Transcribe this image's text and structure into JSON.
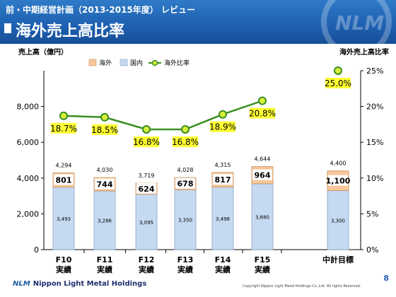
{
  "header": {
    "subtitle": "前・中期経営計画（2013-2015年度） レビュー",
    "title": "海外売上高比率"
  },
  "chart_data": {
    "type": "bar",
    "ylabel": "売上高（億円）",
    "y2label": "海外売上高比率",
    "legend": [
      "海外",
      "国内",
      "海外比率"
    ],
    "legend_position": "top-left",
    "categories": [
      "F10\n実績",
      "F11\n実績",
      "F12\n実績",
      "F13\n実績",
      "F14\n実績",
      "F15\n実績",
      "中計目標"
    ],
    "series": [
      {
        "name": "国内",
        "values": [
          3493,
          3286,
          3095,
          3350,
          3498,
          3680,
          3300
        ],
        "color": "#c5d9f1"
      },
      {
        "name": "海外",
        "values": [
          801,
          744,
          624,
          678,
          817,
          964,
          1100
        ],
        "color": "#f7c79b"
      }
    ],
    "totals": [
      4294,
      4030,
      3719,
      4028,
      4315,
      4644,
      4400
    ],
    "domestic_labels": [
      "3,493",
      "3,286",
      "3,095",
      "3,350",
      "3,498",
      "3,680",
      "3,300"
    ],
    "overseas_labels": [
      "801",
      "744",
      "624",
      "678",
      "817",
      "964",
      "1,100"
    ],
    "total_labels": [
      "4,294",
      "4,030",
      "3,719",
      "4,028",
      "4,315",
      "4,644",
      "4,400"
    ],
    "ratio": {
      "name": "海外比率",
      "values": [
        18.7,
        18.5,
        16.8,
        16.8,
        18.9,
        20.8,
        25.0
      ],
      "labels": [
        "18.7%",
        "18.5%",
        "16.8%",
        "16.8%",
        "18.9%",
        "20.8%",
        "25.0%"
      ],
      "color": "#3a8f1f",
      "marker_color": "#d9ef3b",
      "label_bg": "#ffff33"
    },
    "ylim": [
      0,
      10000
    ],
    "y_ticks": [
      "0",
      "2,000",
      "4,000",
      "6,000",
      "8,000"
    ],
    "y_tick_values": [
      0,
      2000,
      4000,
      6000,
      8000
    ],
    "y2lim": [
      0,
      25
    ],
    "y2_ticks": [
      "0%",
      "5%",
      "10%",
      "15%",
      "20%",
      "25%"
    ],
    "y2_tick_values": [
      0,
      5,
      10,
      15,
      20,
      25
    ],
    "grid": false
  },
  "footer": {
    "company": "Nippon Light Metal Holdings",
    "logo_text": "NLM",
    "copyright": "Copyright Nippon Light Metal Holdings Co.,Ltd. All rights Reserved.",
    "page": "8"
  },
  "colors": {
    "header_blue": "#1d5fb0",
    "page_blue": "#2d63b5"
  }
}
